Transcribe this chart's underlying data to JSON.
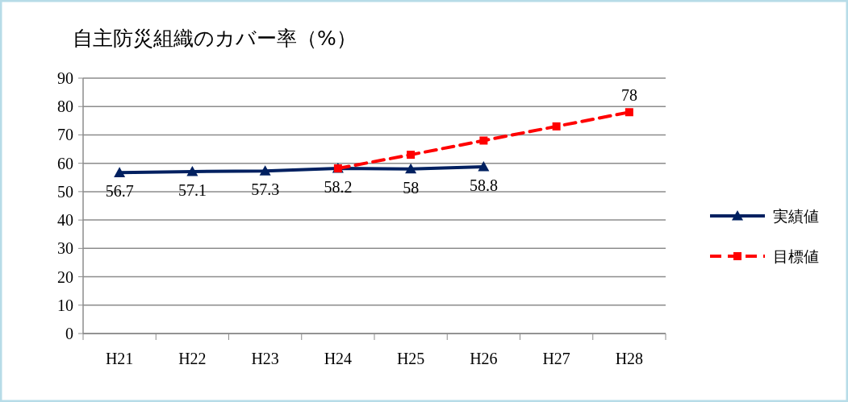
{
  "chart_data": {
    "type": "line",
    "title": "自主防災組織のカバー率（%）",
    "categories": [
      "H21",
      "H22",
      "H23",
      "H24",
      "H25",
      "H26",
      "H27",
      "H28"
    ],
    "series": [
      {
        "name": "実績値",
        "color": "#002060",
        "marker": "triangle",
        "line_style": "solid",
        "values": [
          56.7,
          57.1,
          57.3,
          58.2,
          58,
          58.8,
          null,
          null
        ],
        "value_labels": [
          "56.7",
          "57.1",
          "57.3",
          "58.2",
          "58",
          "58.8",
          null,
          null
        ]
      },
      {
        "name": "目標値",
        "color": "#ff0000",
        "marker": "square",
        "line_style": "dashed",
        "values": [
          null,
          null,
          null,
          58.2,
          63,
          68,
          73,
          78
        ],
        "value_labels": [
          null,
          null,
          null,
          null,
          null,
          null,
          null,
          "78"
        ]
      }
    ],
    "ylim": [
      0,
      90
    ],
    "yticks": [
      0,
      10,
      20,
      30,
      40,
      50,
      60,
      70,
      80,
      90
    ],
    "grid": "y",
    "legend": "right"
  }
}
